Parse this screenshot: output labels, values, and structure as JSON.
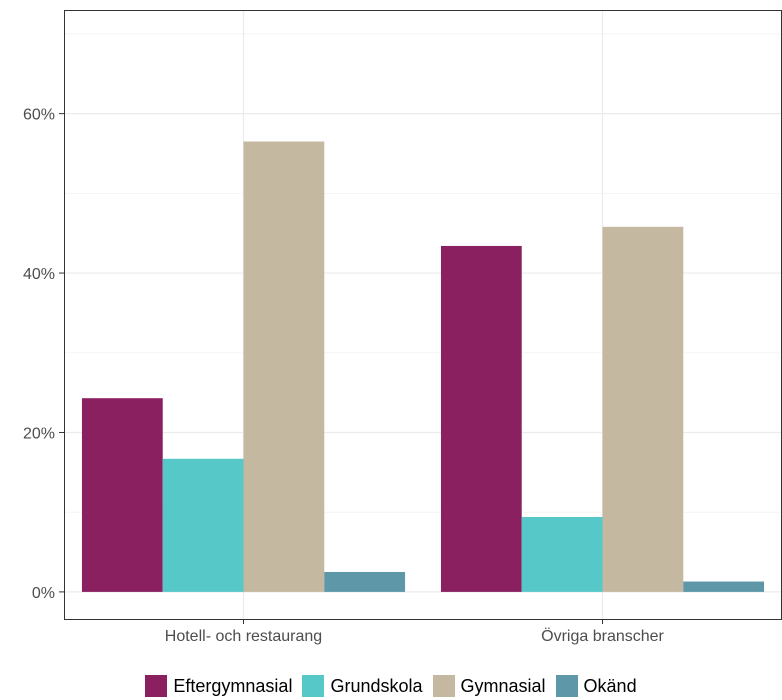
{
  "chart_data": {
    "type": "bar",
    "categories": [
      "Hotell- och restaurang",
      "Övriga branscher"
    ],
    "series": [
      {
        "name": "Eftergymnasial",
        "color": "#8B2060",
        "values": [
          24.3,
          43.4
        ]
      },
      {
        "name": "Grundskola",
        "color": "#56C8C8",
        "values": [
          16.7,
          9.4
        ]
      },
      {
        "name": "Gymnasial",
        "color": "#C4B8A0",
        "values": [
          56.5,
          45.8
        ]
      },
      {
        "name": "Okänd",
        "color": "#5E97A8",
        "values": [
          2.5,
          1.3
        ]
      }
    ],
    "ylim": [
      -3.4,
      73.0
    ],
    "yticks": [
      0,
      20,
      40,
      60
    ],
    "ytick_labels": [
      "0%",
      "20%",
      "40%",
      "60%"
    ],
    "grid": true,
    "legend_position": "bottom"
  }
}
